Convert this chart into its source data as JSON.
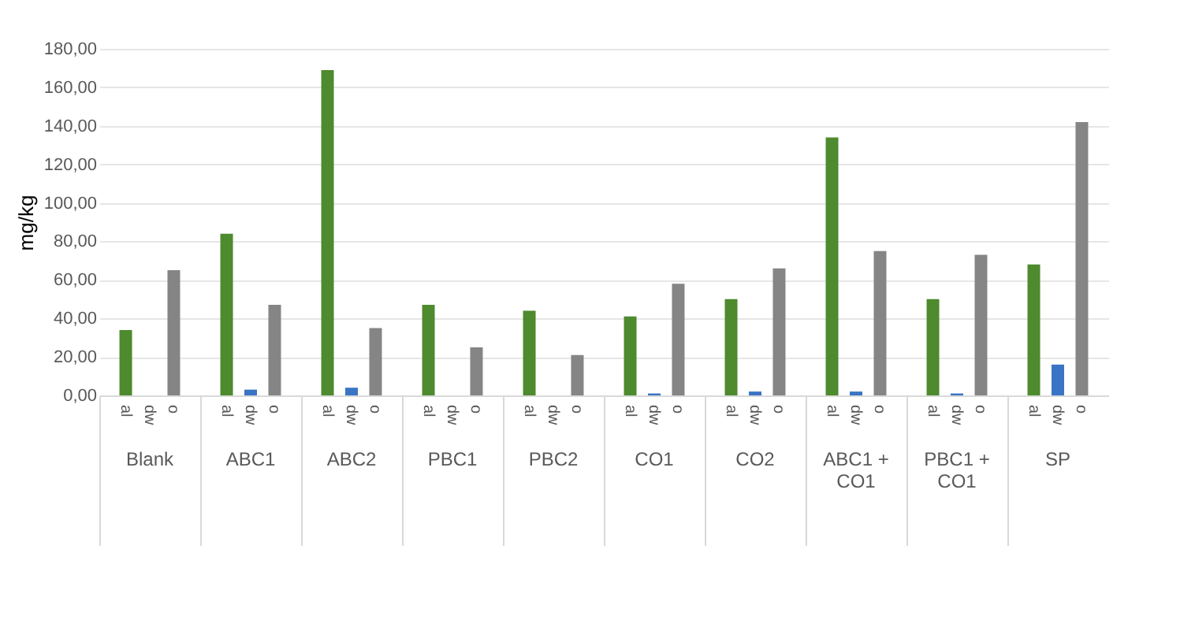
{
  "chart_data": {
    "type": "bar",
    "ylabel": "mg/kg",
    "categories": [
      "Blank",
      "ABC1",
      "ABC2",
      "PBC1",
      "PBC2",
      "CO1",
      "CO2",
      "ABC1 + CO1",
      "PBC1 + CO1",
      "SP"
    ],
    "series": [
      {
        "name": "al",
        "color": "#4e8a2e",
        "values": [
          34,
          84,
          169,
          47,
          44,
          41,
          50,
          134,
          50,
          68
        ]
      },
      {
        "name": "dw",
        "color": "#3a74c4",
        "values": [
          0,
          3,
          4,
          0,
          0,
          1,
          2,
          2,
          1,
          16
        ]
      },
      {
        "name": "o",
        "color": "#858585",
        "values": [
          65,
          47,
          35,
          25,
          21,
          58,
          66,
          75,
          73,
          142
        ]
      }
    ],
    "ylim": [
      0,
      180
    ],
    "yticks": [
      {
        "value": 0,
        "label": "0,00"
      },
      {
        "value": 20,
        "label": "20,00"
      },
      {
        "value": 40,
        "label": "40,00"
      },
      {
        "value": 60,
        "label": "60,00"
      },
      {
        "value": 80,
        "label": "80,00"
      },
      {
        "value": 100,
        "label": "100,00"
      },
      {
        "value": 120,
        "label": "120,00"
      },
      {
        "value": 140,
        "label": "140,00"
      },
      {
        "value": 160,
        "label": "160,00"
      },
      {
        "value": 180,
        "label": "180,00"
      }
    ],
    "grid": "y",
    "legend": false
  }
}
